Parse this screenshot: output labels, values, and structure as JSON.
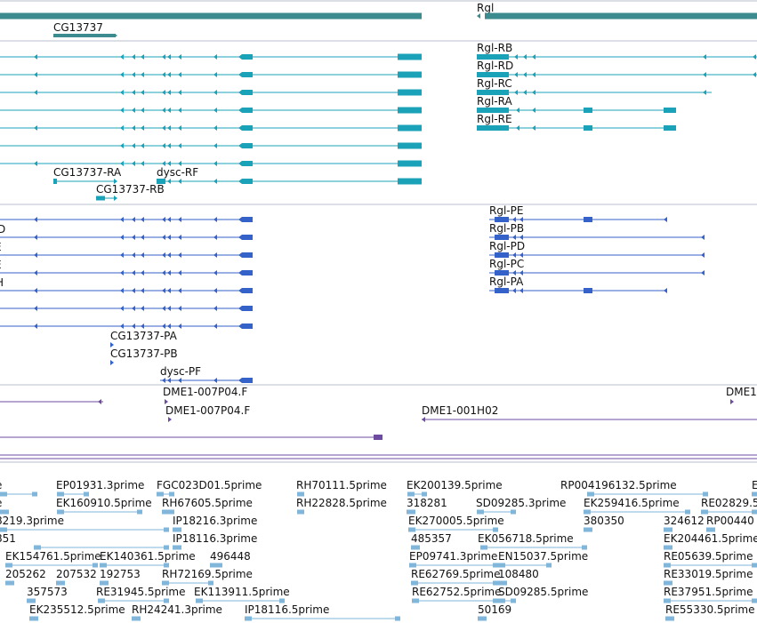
{
  "colors": {
    "gene": "#3b8b8f",
    "transcript": "#1aa3b8",
    "protein": "#3462c9",
    "clone": "#6c4ba0",
    "est": "#7fb6d9",
    "divider": "#b8c2cc"
  },
  "gene_track": {
    "labels": [
      "CG13737",
      "Rgl"
    ]
  },
  "transcript_track": {
    "labels": [
      "Rgl-RB",
      "Rgl-RD",
      "Rgl-RC",
      "Rgl-RA",
      "Rgl-RE",
      "CG13737-RA",
      "dysc-RF",
      "CG13737-RB"
    ]
  },
  "protein_track": {
    "labels": [
      "Rgl-PE",
      "Rgl-PB",
      "Rgl-PD",
      "Rgl-PC",
      "Rgl-PA",
      "CG13737-PA",
      "CG13737-PB",
      "dysc-PF",
      "D",
      "E",
      "E",
      "H"
    ]
  },
  "clone_track": {
    "labels": [
      "DME1-007P04.F",
      "DME1-007P04.F",
      "DME1-001H02",
      "DME1"
    ]
  },
  "est_track": {
    "labels": [
      "e",
      "EP01931.3prime",
      "FGC023D01.5prime",
      "RH70111.5prime",
      "EK200139.5prime",
      "RP004196132.5prime",
      "E",
      "e",
      "EK160910.5prime",
      "RH67605.5prime",
      "RH22828.5prime",
      "318281",
      "SD09285.3prime",
      "EK259416.5prime",
      "RE02829.5",
      "8219.3prime",
      "IP18216.3prime",
      "EK270005.5prime",
      "380350",
      "324612",
      "RP00440",
      "851",
      "IP18116.3prime",
      "485357",
      "EK056718.5prime",
      "EK204461.5prime",
      "EK154761.5prime",
      "EK140361.5prime",
      "496448",
      "EP09741.3prime",
      "EN15037.5prime",
      "RE05639.5prime",
      "205262",
      "207532",
      "192753",
      "RH72169.5prime",
      "RE62769.5prime",
      "108480",
      "RE33019.5prime",
      "357573",
      "RE31945.5prime",
      "EK113911.5prime",
      "RE62752.5prime",
      "SD09285.5prime",
      "RE37951.5prime",
      "EK235512.5prime",
      "RH24241.3prime",
      "IP18116.5prime",
      "50169",
      "RE55330.5prime"
    ]
  }
}
